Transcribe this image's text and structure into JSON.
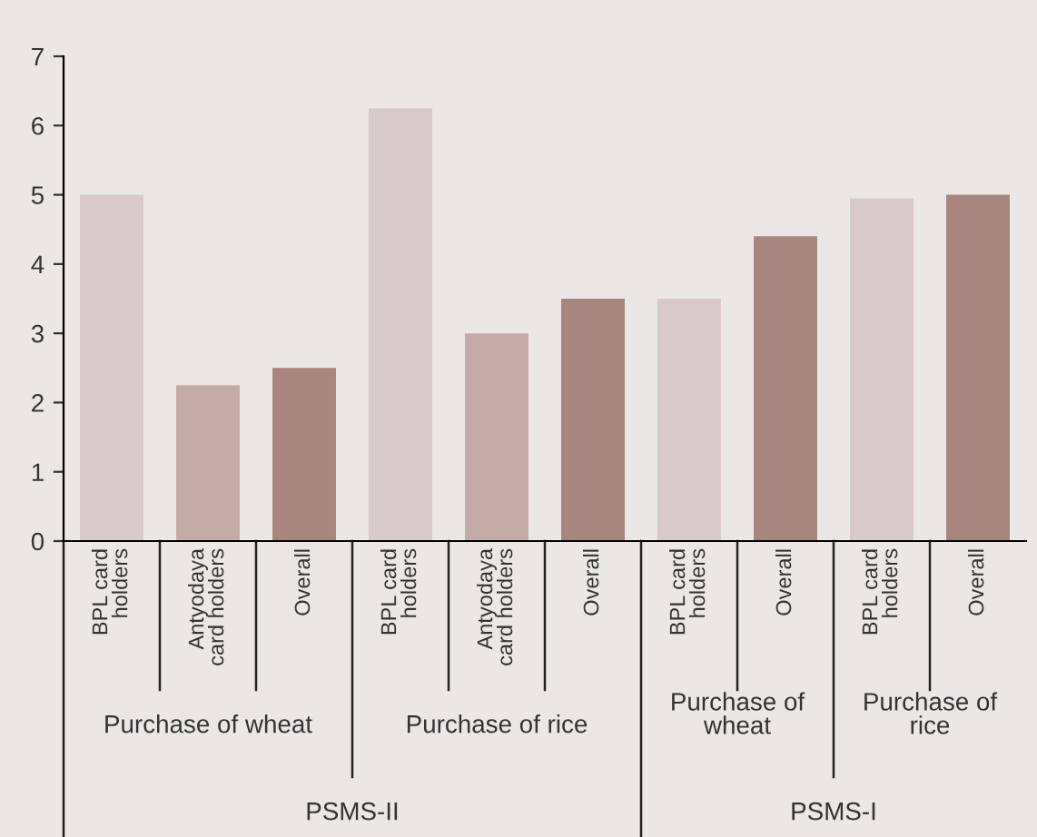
{
  "chart_data": {
    "type": "bar",
    "categories": [
      "BPL card\nholders",
      "Antyodaya\ncard holders",
      "Overall",
      "BPL card\nholders",
      "Antyodaya\ncard holders",
      "Overall",
      "BPL card\nholders",
      "Overall",
      "BPL card\nholders",
      "Overall"
    ],
    "values": [
      5.0,
      2.25,
      2.5,
      6.25,
      3.0,
      3.5,
      3.5,
      4.4,
      4.95,
      5.0
    ],
    "colors": [
      "#d8cac8",
      "#c4aba7",
      "#a9857f",
      "#d8cac8",
      "#c4aba7",
      "#a9857f",
      "#d8cac8",
      "#a9857f",
      "#d8cac8",
      "#a9857f"
    ],
    "ylim": [
      0,
      7
    ],
    "yticks": [
      0,
      1,
      2,
      3,
      4,
      5,
      6,
      7
    ],
    "grid": false,
    "annotations": [
      "Purchase of wheat",
      "Purchase of rice",
      "Purchase of\nwheat",
      "Purchase of\nrice",
      "PSMS-II",
      "PSMS-I"
    ]
  }
}
